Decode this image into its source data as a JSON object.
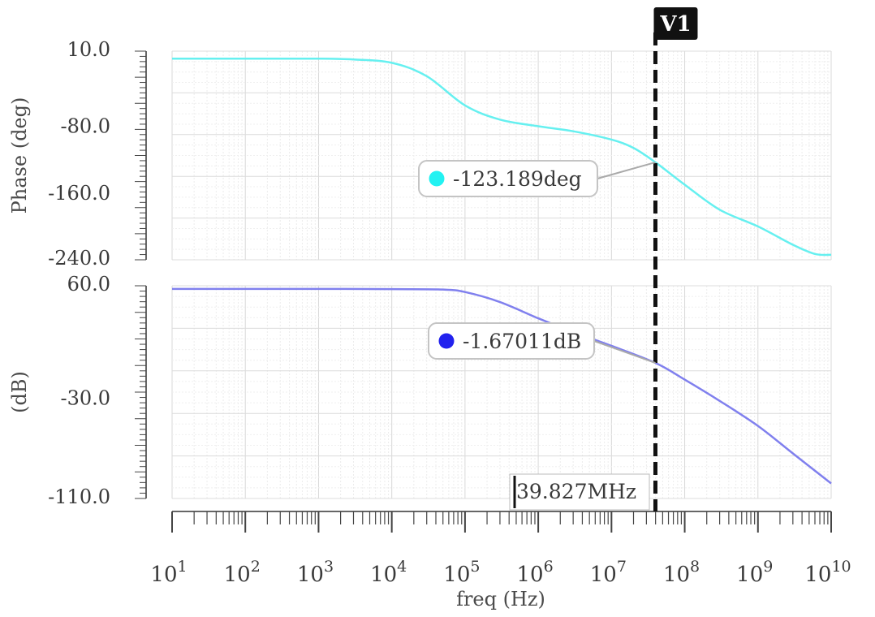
{
  "chart_data": {
    "type": "line",
    "xlabel": "freq (Hz)",
    "xscale": "log",
    "xlim": [
      10,
      10000000000
    ],
    "x_ticks": [
      {
        "base": "10",
        "exp": "1"
      },
      {
        "base": "10",
        "exp": "2"
      },
      {
        "base": "10",
        "exp": "3"
      },
      {
        "base": "10",
        "exp": "4"
      },
      {
        "base": "10",
        "exp": "5"
      },
      {
        "base": "10",
        "exp": "6"
      },
      {
        "base": "10",
        "exp": "7"
      },
      {
        "base": "10",
        "exp": "8"
      },
      {
        "base": "10",
        "exp": "9"
      },
      {
        "base": "10",
        "exp": "10"
      }
    ],
    "cursor": {
      "name": "V1",
      "x": 39827000,
      "x_label": "39.827MHz"
    },
    "panels": [
      {
        "id": "phase",
        "ylabel": "Phase (deg)",
        "ylim": [
          -240,
          10
        ],
        "y_tick_labels": [
          "10.0",
          "-80.0",
          "-160.0",
          "-240.0"
        ],
        "y_tick_values": [
          10,
          -80,
          -160,
          -240
        ],
        "series": [
          {
            "name": "phase",
            "color": "#66f0f0",
            "marker_color": "#22f2f2",
            "x": [
              10,
              100,
              1000,
              3000,
              10000,
              30000,
              100000,
              300000,
              1000000,
              3000000,
              10000000,
              20000000,
              39827000,
              100000000,
              300000000,
              1000000000,
              3000000000,
              6000000000,
              10000000000
            ],
            "y": [
              1,
              1,
              1,
              0,
              -4,
              -20,
              -55,
              -72,
              -80,
              -86,
              -96,
              -106,
              -123.2,
              -150,
              -180,
              -200,
              -222,
              -233,
              -234
            ]
          }
        ],
        "marker": {
          "label": "-123.189deg",
          "value": -123.189
        }
      },
      {
        "id": "magnitude",
        "ylabel": "(dB)",
        "ylim": [
          -110,
          60
        ],
        "y_tick_labels": [
          "60.0",
          "-30.0",
          "-110.0"
        ],
        "y_tick_values": [
          60,
          -30,
          -110
        ],
        "series": [
          {
            "name": "magnitude",
            "color": "#8080ee",
            "marker_color": "#2222ee",
            "x": [
              10,
              100,
              1000,
              10000,
              50000,
              100000,
              300000,
              1000000,
              3000000,
              10000000,
              39827000,
              100000000,
              300000000,
              1000000000,
              3000000000,
              10000000000
            ],
            "y": [
              57.5,
              57.5,
              57.5,
              57.3,
              57,
              55,
              47,
              34,
              23,
              12,
              -1.67,
              -15,
              -32,
              -52,
              -74,
              -98
            ]
          }
        ],
        "marker": {
          "label": "-1.67011dB",
          "value": -1.67011
        }
      }
    ]
  }
}
